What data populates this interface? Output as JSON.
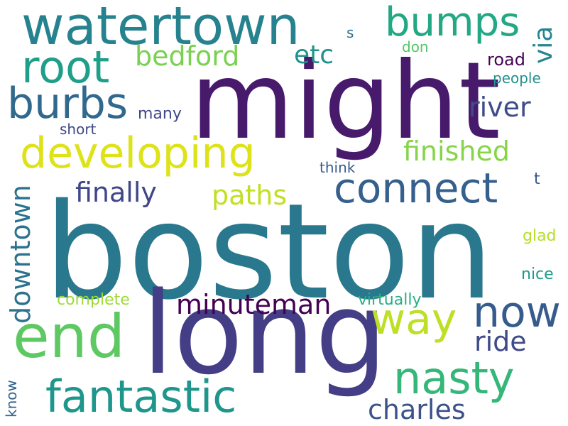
{
  "words": [
    {
      "text": "boston",
      "color": "#2a788e"
    },
    {
      "text": "might",
      "color": "#481a6c"
    },
    {
      "text": "long",
      "color": "#433e85"
    },
    {
      "text": "watertown",
      "color": "#26828e"
    },
    {
      "text": "end",
      "color": "#5ec962"
    },
    {
      "text": "root",
      "color": "#1f9e89"
    },
    {
      "text": "bumps",
      "color": "#22a884"
    },
    {
      "text": "burbs",
      "color": "#31688e"
    },
    {
      "text": "developing",
      "color": "#dde318"
    },
    {
      "text": "connect",
      "color": "#355f8d"
    },
    {
      "text": "now",
      "color": "#365c8d"
    },
    {
      "text": "nasty",
      "color": "#35b779"
    },
    {
      "text": "fantastic",
      "color": "#1f968b"
    },
    {
      "text": "way",
      "color": "#bddf26"
    },
    {
      "text": "minuteman",
      "color": "#440154"
    },
    {
      "text": "finally",
      "color": "#404688"
    },
    {
      "text": "paths",
      "color": "#c2df23"
    },
    {
      "text": "bedford",
      "color": "#7ad151"
    },
    {
      "text": "etc",
      "color": "#1f948c"
    },
    {
      "text": "river",
      "color": "#3e4c8a"
    },
    {
      "text": "finished",
      "color": "#86d549"
    },
    {
      "text": "downtown",
      "color": "#2c728e"
    },
    {
      "text": "ride",
      "color": "#3e4a89"
    },
    {
      "text": "charles",
      "color": "#3b528b"
    },
    {
      "text": "via",
      "color": "#25848e"
    },
    {
      "text": "don",
      "color": "#54c568"
    },
    {
      "text": "road",
      "color": "#450457"
    },
    {
      "text": "people",
      "color": "#21918c"
    },
    {
      "text": "many",
      "color": "#3f4889"
    },
    {
      "text": "short",
      "color": "#3e4989"
    },
    {
      "text": "think",
      "color": "#375a8c"
    },
    {
      "text": "t",
      "color": "#39568c"
    },
    {
      "text": "s",
      "color": "#2c718e"
    },
    {
      "text": "glad",
      "color": "#b5de2b"
    },
    {
      "text": "nice",
      "color": "#1f9a8a"
    },
    {
      "text": "virtually",
      "color": "#28ae80"
    },
    {
      "text": "complete",
      "color": "#9fda3a"
    },
    {
      "text": "know",
      "color": "#33638d"
    }
  ]
}
